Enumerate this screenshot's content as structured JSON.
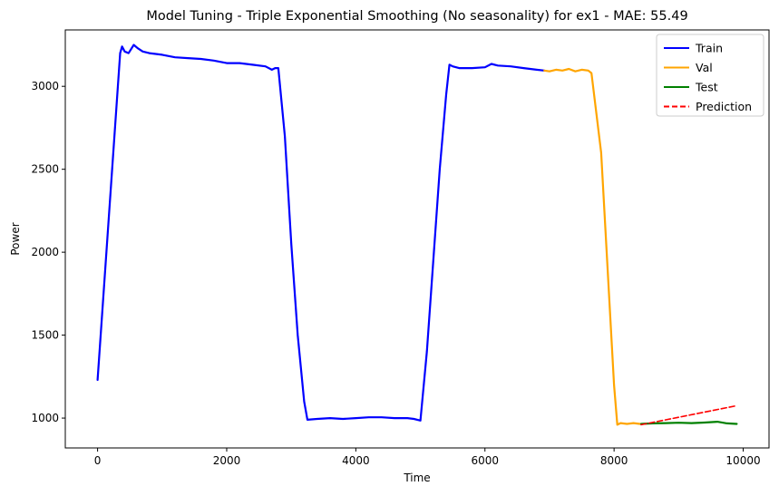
{
  "chart_data": {
    "type": "line",
    "title": "Model Tuning - Triple Exponential Smoothing (No seasonality) for ex1 - MAE: 55.49",
    "xlabel": "Time",
    "ylabel": "Power",
    "xlim": [
      -500,
      10400
    ],
    "ylim": [
      820,
      3340
    ],
    "xticks": [
      0,
      2000,
      4000,
      6000,
      8000,
      10000
    ],
    "yticks": [
      1000,
      1500,
      2000,
      2500,
      3000
    ],
    "grid": false,
    "legend_position": "top-right",
    "series": [
      {
        "name": "Train",
        "color": "#0000ff",
        "style": "solid",
        "x": [
          0,
          350,
          380,
          420,
          480,
          560,
          620,
          700,
          800,
          1000,
          1200,
          1400,
          1600,
          1800,
          2000,
          2200,
          2400,
          2600,
          2700,
          2750,
          2800,
          2900,
          3000,
          3100,
          3200,
          3250,
          3400,
          3600,
          3800,
          4000,
          4200,
          4400,
          4600,
          4800,
          4900,
          5000,
          5100,
          5200,
          5300,
          5400,
          5450,
          5500,
          5600,
          5800,
          6000,
          6100,
          6200,
          6400,
          6600,
          6800,
          6920
        ],
        "y": [
          1230,
          3200,
          3240,
          3210,
          3200,
          3250,
          3230,
          3210,
          3200,
          3190,
          3175,
          3170,
          3165,
          3155,
          3140,
          3140,
          3130,
          3120,
          3100,
          3110,
          3110,
          2700,
          2050,
          1500,
          1100,
          990,
          995,
          1000,
          995,
          1000,
          1005,
          1005,
          1000,
          1000,
          995,
          985,
          1400,
          1950,
          2500,
          2950,
          3130,
          3120,
          3110,
          3110,
          3115,
          3135,
          3125,
          3120,
          3110,
          3100,
          3095
        ]
      },
      {
        "name": "Val",
        "color": "#ffa500",
        "style": "solid",
        "x": [
          6920,
          7000,
          7100,
          7200,
          7300,
          7400,
          7500,
          7600,
          7650,
          7800,
          8000,
          8050,
          8100,
          8200,
          8300,
          8400
        ],
        "y": [
          3095,
          3090,
          3100,
          3095,
          3105,
          3090,
          3100,
          3095,
          3080,
          2600,
          1200,
          960,
          970,
          965,
          970,
          965
        ]
      },
      {
        "name": "Test",
        "color": "#008000",
        "style": "solid",
        "x": [
          8420,
          8600,
          8800,
          9000,
          9200,
          9400,
          9600,
          9750,
          9900
        ],
        "y": [
          965,
          968,
          970,
          972,
          970,
          973,
          978,
          968,
          965
        ]
      },
      {
        "name": "Prediction",
        "color": "#ff0000",
        "style": "dashed",
        "x": [
          8420,
          9900
        ],
        "y": [
          960,
          1075
        ]
      }
    ]
  }
}
